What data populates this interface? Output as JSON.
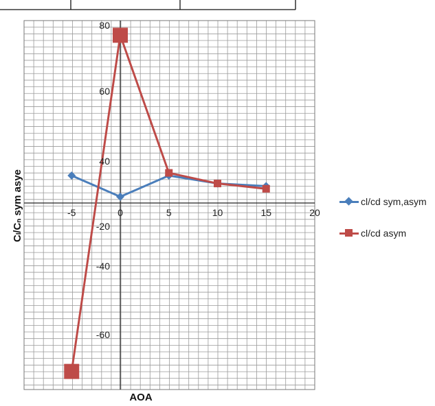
{
  "chart_data": {
    "type": "line",
    "title": "",
    "xlabel": "AOA",
    "ylabel": "Cₗ/Cₙ sym asye",
    "x": [
      -5,
      0,
      5,
      10,
      15
    ],
    "x_ticks": [
      "-5",
      "0",
      "5",
      "10",
      "15",
      "20"
    ],
    "y_ticks": [
      "80",
      "60",
      "40",
      "-20",
      "-40",
      "-60"
    ],
    "xlim": [
      -10,
      20
    ],
    "ylim": [
      -80,
      80
    ],
    "grid": true,
    "legend_position": "right",
    "series": [
      {
        "name": "cl/cd sym,asym",
        "color": "#4a7ebb",
        "marker": "diamond",
        "values": [
          14,
          6,
          14,
          11,
          10
        ]
      },
      {
        "name": "cl/cd asym",
        "color": "#be4b48",
        "marker": "square",
        "values": [
          -60,
          67,
          15,
          11,
          9
        ]
      }
    ]
  }
}
